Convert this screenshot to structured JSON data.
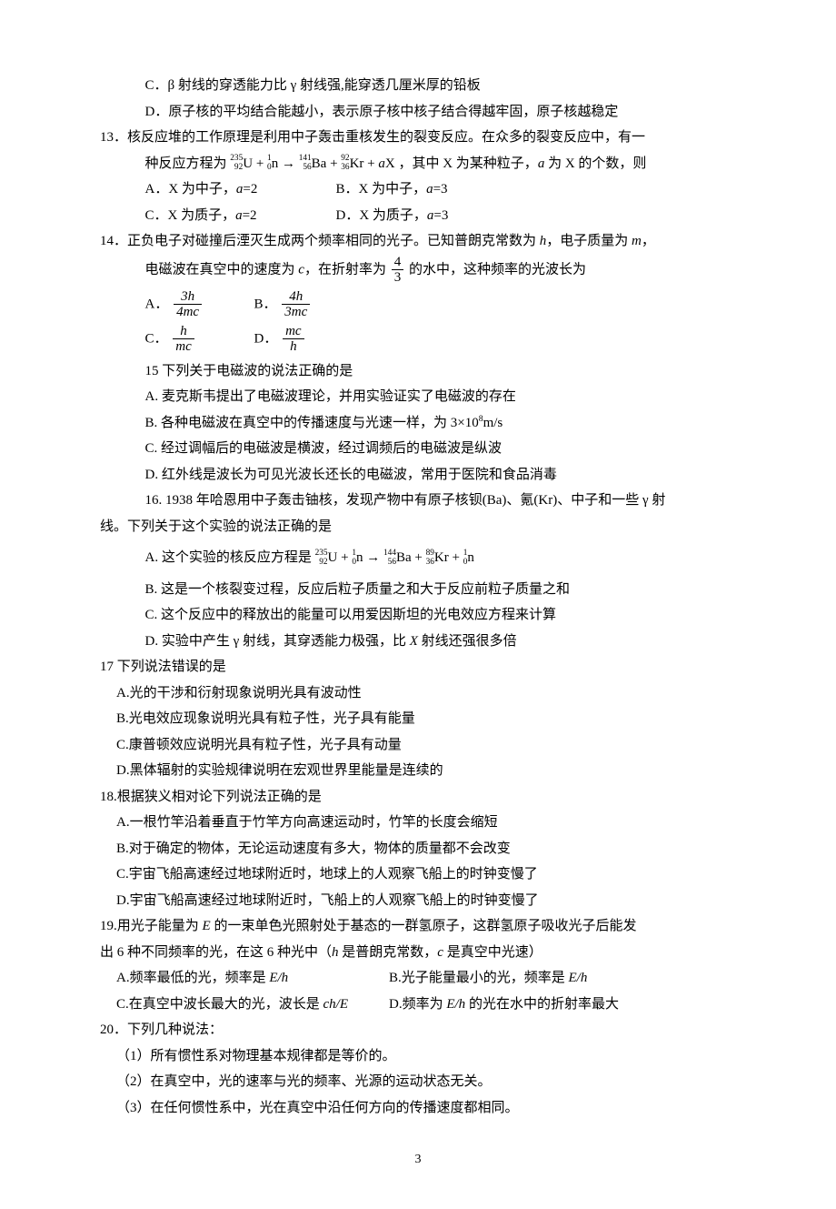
{
  "q12": {
    "C": "C．β 射线的穿透能力比 γ 射线强,能穿透几厘米厚的铅板",
    "D": "D．原子核的平均结合能越小，表示原子核中核子结合得越牢固，原子核越稳定"
  },
  "q13": {
    "stem1": "13．核反应堆的工作原理是利用中子轰击重核发生的裂变反应。在众多的裂变反应中，有一",
    "stem2a": "种反应方程为 ",
    "stem2b": " ，其中 X 为某种粒子，",
    "stem2c": " 为 X 的个数，则",
    "A": "A．X 为中子，",
    "Aa": "=2",
    "B": "B．X 为中子，",
    "Ba": "=3",
    "C": "C．X 为质子，",
    "Ca": "=2",
    "D": "D．X 为质子，",
    "Da": "=3",
    "a": "a",
    "nuke": {
      "U_top": "235",
      "U_bot": "92",
      "U_sym": "U",
      "n_top": "1",
      "n_bot": "0",
      "n_sym": "n",
      "Ba_top": "141",
      "Ba_bot": "56",
      "Ba_sym": "Ba",
      "Kr_top": "92",
      "Kr_bot": "36",
      "Kr_sym": "Kr",
      "plus": "+",
      "arrow": "→",
      "aX": "X"
    }
  },
  "q14": {
    "stem1": "14．正负电子对碰撞后湮灭生成两个频率相同的光子。已知普朗克常数为 ",
    "h": "h",
    "comma1": "，电子质量为 ",
    "m": "m",
    "tail1": "，",
    "stem2a": "电磁波在真空中的速度为 ",
    "c": "c",
    "stem2b": "，在折射率为",
    "frac43_num": "4",
    "frac43_den": "3",
    "stem2c": "的水中，这种频率的光波长为",
    "A": "A．",
    "B": "B．",
    "C": "C．",
    "D": "D．",
    "optA_num": "3h",
    "optA_den": "4mc",
    "optB_num": "4h",
    "optB_den": "3mc",
    "optC_num": "h",
    "optC_den": "mc",
    "optD_num": "mc",
    "optD_den": "h"
  },
  "q15": {
    "stem": "15  下列关于电磁波的说法正确的是",
    "A": "A.  麦克斯韦提出了电磁波理论，并用实验证实了电磁波的存在",
    "B_a": "B.  各种电磁波在真空中的传播速度与光速一样，为 3×10",
    "B_exp": "8",
    "B_b": "m/s",
    "C": "C.  经过调幅后的电磁波是横波，经过调频后的电磁波是纵波",
    "D": "D.  红外线是波长为可见光波长还长的电磁波，常用于医院和食品消毒"
  },
  "q16": {
    "stem1": "16. 1938 年哈恩用中子轰击铀核，发现产物中有原子核钡(Ba)、氪(Kr)、中子和一些 γ 射",
    "stem2": "线。下列关于这个实验的说法正确的是",
    "A_a": "A.  这个实验的核反应方程是 ",
    "nuke": {
      "U_top": "235",
      "U_bot": "92",
      "U_sym": "U",
      "n_top": "1",
      "n_bot": "0",
      "n_sym": "n",
      "Ba_top": "144",
      "Ba_bot": "56",
      "Ba_sym": "Ba",
      "Kr_top": "89",
      "Kr_bot": "36",
      "Kr_sym": "Kr",
      "n2_top": "1",
      "n2_bot": "0",
      "n2_sym": "n",
      "plus": "+",
      "arrow": "→"
    },
    "B": "B.  这是一个核裂变过程，反应后粒子质量之和大于反应前粒子质量之和",
    "C": "C.  这个反应中的释放出的能量可以用爱因斯坦的光电效应方程来计算",
    "D_a": "D.  实验中产生 γ 射线，其穿透能力极强，比 ",
    "D_x": "X",
    "D_b": " 射线还强很多倍"
  },
  "q17": {
    "stem": "17 下列说法错误的是",
    "A": "A.光的干涉和衍射现象说明光具有波动性",
    "B": "B.光电效应现象说明光具有粒子性，光子具有能量",
    "C": "C.康普顿效应说明光具有粒子性，光子具有动量",
    "D": "D.黑体辐射的实验规律说明在宏观世界里能量是连续的"
  },
  "q18": {
    "stem": "18.根据狭义相对论下列说法正确的是",
    "A": "A.一根竹竿沿着垂直于竹竿方向高速运动时，竹竿的长度会缩短",
    "B": "B.对于确定的物体，无论运动速度有多大，物体的质量都不会改变",
    "C": "C.宇宙飞船高速经过地球附近时，地球上的人观察飞船上的时钟变慢了",
    "D": "D.宇宙飞船高速经过地球附近时，飞船上的人观察飞船上的时钟变慢了"
  },
  "q19": {
    "stem1a": "19.用光子能量为 ",
    "E": "E",
    "stem1b": " 的一束单色光照射处于基态的一群氢原子，这群氢原子吸收光子后能发",
    "stem2a": "出 6 种不同频率的光，在这 6 种光中（",
    "h": "h",
    "stem2b": " 是普朗克常数，",
    "c": "c",
    "stem2c": " 是真空中光速）",
    "A_a": "A.频率最低的光，频率是 ",
    "A_b": "E/h",
    "B_a": "B.光子能量最小的光，频率是 ",
    "B_b": "E/h",
    "C_a": "C.在真空中波长最大的光，波长是 ",
    "C_b": "ch/E",
    "D_a": "D.频率为 ",
    "D_b": "E/h",
    "D_c": " 的光在水中的折射率最大"
  },
  "q20": {
    "stem": "20．下列几种说法：",
    "i1": "（1）所有惯性系对物理基本规律都是等价的。",
    "i2": "（2）在真空中，光的速率与光的频率、光源的运动状态无关。",
    "i3": "（3）在任何惯性系中，光在真空中沿任何方向的传播速度都相同。"
  },
  "page": "3"
}
